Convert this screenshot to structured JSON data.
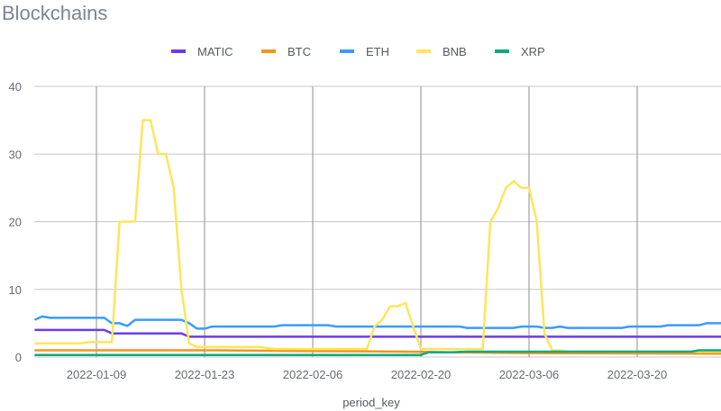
{
  "title": "Blockchains",
  "colors": {
    "MATIC": "#6a3de8",
    "BTC": "#f7931a",
    "ETH": "#3a9bff",
    "BNB": "#fde55c",
    "XRP": "#0aaa80",
    "grid": "#c8c8c8",
    "grid_x": "#8e8e8e"
  },
  "chart_data": {
    "type": "line",
    "title": "Blockchains",
    "xlabel": "period_key",
    "ylabel": "",
    "ylim": [
      0,
      40
    ],
    "yticks": [
      0,
      10,
      20,
      30,
      40
    ],
    "xlim": [
      "2022-01-01",
      "2022-04-01"
    ],
    "xticks": [
      "2022-01-09",
      "2022-01-23",
      "2022-02-06",
      "2022-02-20",
      "2022-03-06",
      "2022-03-20"
    ],
    "grid": true,
    "legend": "top-center",
    "series": [
      {
        "name": "MATIC",
        "x": [
          "2022-01-01",
          "2022-01-10",
          "2022-01-11",
          "2022-01-20",
          "2022-01-21",
          "2022-04-01"
        ],
        "values": [
          4.0,
          4.0,
          3.5,
          3.5,
          3.0,
          3.0
        ]
      },
      {
        "name": "BTC",
        "x": [
          "2022-01-01",
          "2022-01-25",
          "2022-02-04",
          "2022-02-18",
          "2022-03-04",
          "2022-04-01"
        ],
        "values": [
          1.0,
          1.0,
          0.9,
          0.8,
          0.6,
          0.5
        ]
      },
      {
        "name": "ETH",
        "x": [
          "2022-01-01",
          "2022-01-02",
          "2022-01-03",
          "2022-01-10",
          "2022-01-11",
          "2022-01-12",
          "2022-01-13",
          "2022-01-14",
          "2022-01-20",
          "2022-01-21",
          "2022-01-22",
          "2022-01-23",
          "2022-01-24",
          "2022-02-01",
          "2022-02-02",
          "2022-02-08",
          "2022-02-09",
          "2022-02-25",
          "2022-02-26",
          "2022-03-04",
          "2022-03-05",
          "2022-03-07",
          "2022-03-08",
          "2022-03-09",
          "2022-03-10",
          "2022-03-11",
          "2022-03-12",
          "2022-03-13",
          "2022-03-18",
          "2022-03-19",
          "2022-03-23",
          "2022-03-24",
          "2022-03-28",
          "2022-03-29",
          "2022-04-01"
        ],
        "values": [
          5.5,
          6.0,
          5.8,
          5.8,
          5.0,
          5.0,
          4.6,
          5.5,
          5.5,
          5.0,
          4.2,
          4.2,
          4.5,
          4.5,
          4.7,
          4.7,
          4.5,
          4.5,
          4.3,
          4.3,
          4.5,
          4.5,
          4.3,
          4.3,
          4.5,
          4.3,
          4.3,
          4.3,
          4.3,
          4.5,
          4.5,
          4.7,
          4.7,
          5.0,
          5.0
        ]
      },
      {
        "name": "BNB",
        "x": [
          "2022-01-01",
          "2022-01-07",
          "2022-01-08",
          "2022-01-11",
          "2022-01-12",
          "2022-01-14",
          "2022-01-15",
          "2022-01-16",
          "2022-01-17",
          "2022-01-18",
          "2022-01-19",
          "2022-01-20",
          "2022-01-21",
          "2022-01-22",
          "2022-01-23",
          "2022-01-30",
          "2022-02-01",
          "2022-02-13",
          "2022-02-14",
          "2022-02-15",
          "2022-02-16",
          "2022-02-17",
          "2022-02-18",
          "2022-02-19",
          "2022-02-20",
          "2022-02-21",
          "2022-02-22",
          "2022-02-28",
          "2022-03-01",
          "2022-03-02",
          "2022-03-03",
          "2022-03-04",
          "2022-03-05",
          "2022-03-06",
          "2022-03-07",
          "2022-03-08",
          "2022-03-09",
          "2022-03-10",
          "2022-03-11",
          "2022-04-01"
        ],
        "values": [
          2.0,
          2.0,
          2.2,
          2.2,
          20.0,
          20.0,
          35.0,
          35.0,
          30.0,
          30.0,
          25.0,
          10.0,
          2.0,
          1.5,
          1.5,
          1.5,
          1.2,
          1.2,
          4.5,
          5.5,
          7.5,
          7.5,
          8.0,
          4.5,
          1.2,
          1.2,
          1.2,
          1.2,
          20.0,
          22.0,
          25.0,
          26.0,
          25.0,
          25.0,
          20.0,
          3.5,
          1.0,
          1.0,
          0.8,
          0.8
        ]
      },
      {
        "name": "XRP",
        "x": [
          "2022-01-01",
          "2022-02-20",
          "2022-02-21",
          "2022-02-24",
          "2022-02-26",
          "2022-03-27",
          "2022-03-28",
          "2022-04-01"
        ],
        "values": [
          0.3,
          0.3,
          0.7,
          0.7,
          0.8,
          0.8,
          1.0,
          1.0
        ]
      }
    ]
  }
}
